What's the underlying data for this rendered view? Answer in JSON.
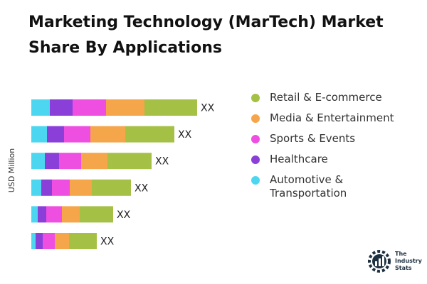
{
  "chart_data": {
    "type": "stacked-barh",
    "title": "Marketing Technology (MarTech) Market Share By Applications",
    "y_label": "USD Million",
    "categories": [
      null,
      null,
      null,
      null,
      null,
      null
    ],
    "series": [
      {
        "name": "Automotive & Transportation",
        "color": "#4dd6f0",
        "values": [
          26,
          22,
          19,
          14,
          9,
          6
        ]
      },
      {
        "name": "Healthcare",
        "color": "#8a3fd9",
        "values": [
          32,
          24,
          20,
          15,
          12,
          10
        ]
      },
      {
        "name": "Sports & Events",
        "color": "#ee4fe0",
        "values": [
          47,
          37,
          31,
          25,
          22,
          17
        ]
      },
      {
        "name": "Media & Entertainment",
        "color": "#f5a54a",
        "values": [
          54,
          49,
          37,
          31,
          25,
          20
        ]
      },
      {
        "name": "Retail & E-commerce",
        "color": "#a5c145",
        "values": [
          74,
          69,
          62,
          55,
          47,
          39
        ]
      }
    ],
    "bar_labels": [
      "XX",
      "XX",
      "XX",
      "XX",
      "XX",
      "XX"
    ]
  },
  "logo": {
    "lines": [
      "The",
      "Industry",
      "Stats"
    ]
  }
}
